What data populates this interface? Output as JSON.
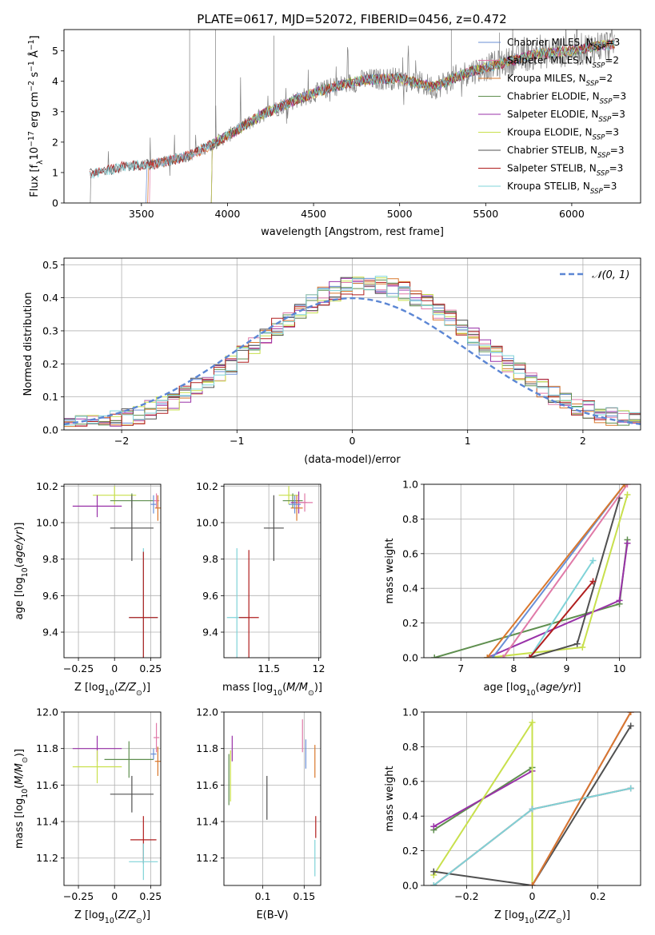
{
  "title": "PLATE=0617, MJD=52072, FIBERID=0456, z=0.472",
  "colors": {
    "Chabrier MILES": "#6a8fd6",
    "Salpeter MILES": "#e07aa8",
    "Kroupa MILES": "#d9782d",
    "Chabrier ELODIE": "#5f8f4f",
    "Salpeter ELODIE": "#9932a8",
    "Kroupa ELODIE": "#c8e04c",
    "Chabrier STELIB": "#505050",
    "Salpeter STELIB": "#b01e1e",
    "Kroupa STELIB": "#7fd3d8",
    "data": "#808080",
    "normal": "#5b86d4"
  },
  "chart_data": [
    {
      "id": "spectrum",
      "type": "line",
      "title": "PLATE=0617, MJD=52072, FIBERID=0456, z=0.472",
      "xlabel": "wavelength [Angstrom, rest frame]",
      "ylabel": "Flux [fλ10⁻¹⁷ erg cm⁻² s⁻¹ Å⁻¹]",
      "xlim": [
        3050,
        6400
      ],
      "ylim": [
        0,
        5.7
      ],
      "xticks": [
        3500,
        4000,
        4500,
        5000,
        5500,
        6000
      ],
      "yticks": [
        0,
        1,
        2,
        3,
        4,
        5
      ],
      "legend_position": "top-right",
      "legend": [
        {
          "name": "Chabrier MILES",
          "label": "Chabrier MILES, N",
          "sub": "SSP",
          "suffix": "=3"
        },
        {
          "name": "Salpeter MILES",
          "label": "Salpeter MILES, N",
          "sub": "SSP",
          "suffix": "=2"
        },
        {
          "name": "Kroupa MILES",
          "label": "Kroupa MILES, N",
          "sub": "SSP",
          "suffix": "=2"
        },
        {
          "name": "Chabrier ELODIE",
          "label": "Chabrier ELODIE, N",
          "sub": "SSP",
          "suffix": "=3"
        },
        {
          "name": "Salpeter ELODIE",
          "label": "Salpeter ELODIE, N",
          "sub": "SSP",
          "suffix": "=3"
        },
        {
          "name": "Kroupa ELODIE",
          "label": "Kroupa ELODIE, N",
          "sub": "SSP",
          "suffix": "=3"
        },
        {
          "name": "Chabrier STELIB",
          "label": "Chabrier STELIB, N",
          "sub": "SSP",
          "suffix": "=3"
        },
        {
          "name": "Salpeter STELIB",
          "label": "Salpeter STELIB, N",
          "sub": "SSP",
          "suffix": "=3"
        },
        {
          "name": "Kroupa STELIB",
          "label": "Kroupa STELIB, N",
          "sub": "SSP",
          "suffix": "=3"
        }
      ],
      "continuum_knots": [
        [
          3200,
          0.95
        ],
        [
          3400,
          1.2
        ],
        [
          3600,
          1.3
        ],
        [
          3800,
          1.6
        ],
        [
          4000,
          2.2
        ],
        [
          4200,
          2.9
        ],
        [
          4400,
          3.4
        ],
        [
          4600,
          3.8
        ],
        [
          4800,
          4.05
        ],
        [
          5000,
          4.1
        ],
        [
          5200,
          3.8
        ],
        [
          5400,
          4.3
        ],
        [
          5600,
          4.6
        ],
        [
          5800,
          4.9
        ],
        [
          6000,
          5.0
        ],
        [
          6200,
          5.2
        ],
        [
          6250,
          5.2
        ]
      ]
    },
    {
      "id": "residuals",
      "type": "histogram",
      "xlabel": "(data-model)/error",
      "ylabel": "Normed distribution",
      "xlim": [
        -2.5,
        2.5
      ],
      "ylim": [
        0,
        0.52
      ],
      "xticks": [
        -2,
        -1,
        0,
        1,
        2
      ],
      "yticks": [
        0.0,
        0.1,
        0.2,
        0.3,
        0.4,
        0.5
      ],
      "bin_edges_range": [
        -2.5,
        2.5
      ],
      "bins": 50,
      "reference_curve": {
        "name": "𝒩(0, 1)",
        "mean": 0,
        "sigma": 1
      },
      "legend_position": "top-right",
      "grid": true
    },
    {
      "id": "age-vs-Z",
      "type": "errorbar",
      "xlabel": "Z [log₁₀(Z/Z⊙)]",
      "ylabel": "age  [log₁₀(age/yr)]",
      "xlim": [
        -0.35,
        0.32
      ],
      "ylim": [
        9.26,
        10.21
      ],
      "xticks": [
        -0.25,
        0.0,
        0.25
      ],
      "yticks": [
        9.4,
        9.6,
        9.8,
        10.0,
        10.2
      ],
      "points": [
        {
          "series": "Kroupa ELODIE",
          "x": 0.0,
          "y": 10.15,
          "xerr": 0.15,
          "yerr": 0.05
        },
        {
          "series": "Chabrier ELODIE",
          "x": 0.12,
          "y": 10.12,
          "xerr": 0.15,
          "yerr": 0.04
        },
        {
          "series": "Salpeter ELODIE",
          "x": -0.12,
          "y": 10.09,
          "xerr": 0.17,
          "yerr": 0.06
        },
        {
          "series": "Chabrier STELIB",
          "x": 0.12,
          "y": 9.97,
          "xerr": 0.15,
          "yerr": 0.18
        },
        {
          "series": "Salpeter MILES",
          "x": 0.29,
          "y": 10.12,
          "xerr": 0.02,
          "yerr": 0.04
        },
        {
          "series": "Kroupa MILES",
          "x": 0.3,
          "y": 10.08,
          "xerr": 0.02,
          "yerr": 0.07
        },
        {
          "series": "Chabrier MILES",
          "x": 0.27,
          "y": 10.1,
          "xerr": 0.02,
          "yerr": 0.05
        },
        {
          "series": "Kroupa STELIB",
          "x": 0.2,
          "y": 9.48,
          "xerr": 0.1,
          "yerr": 0.38
        },
        {
          "series": "Salpeter STELIB",
          "x": 0.2,
          "y": 9.48,
          "xerr": 0.1,
          "yerr": 0.36
        }
      ]
    },
    {
      "id": "age-vs-mass",
      "type": "errorbar",
      "xlabel": "mass [log₁₀(M/M⊙)]",
      "ylabel": "",
      "xlim": [
        11.05,
        12.02
      ],
      "ylim": [
        9.26,
        10.21
      ],
      "xticks": [
        11.5,
        12.0
      ],
      "yticks": [
        9.4,
        9.6,
        9.8,
        10.0,
        10.2
      ],
      "points": [
        {
          "series": "Kroupa ELODIE",
          "x": 11.7,
          "y": 10.15,
          "xerr": 0.1,
          "yerr": 0.05
        },
        {
          "series": "Chabrier ELODIE",
          "x": 11.74,
          "y": 10.12,
          "xerr": 0.1,
          "yerr": 0.04
        },
        {
          "series": "Salpeter ELODIE",
          "x": 11.8,
          "y": 10.11,
          "xerr": 0.08,
          "yerr": 0.06
        },
        {
          "series": "Salpeter MILES",
          "x": 11.86,
          "y": 10.11,
          "xerr": 0.08,
          "yerr": 0.05
        },
        {
          "series": "Kroupa MILES",
          "x": 11.78,
          "y": 10.08,
          "xerr": 0.06,
          "yerr": 0.07
        },
        {
          "series": "Chabrier MILES",
          "x": 11.76,
          "y": 10.1,
          "xerr": 0.06,
          "yerr": 0.05
        },
        {
          "series": "Chabrier STELIB",
          "x": 11.55,
          "y": 9.97,
          "xerr": 0.1,
          "yerr": 0.18
        },
        {
          "series": "Kroupa STELIB",
          "x": 11.18,
          "y": 9.48,
          "xerr": 0.1,
          "yerr": 0.38
        },
        {
          "series": "Salpeter STELIB",
          "x": 11.3,
          "y": 9.48,
          "xerr": 0.1,
          "yerr": 0.37
        }
      ]
    },
    {
      "id": "weight-vs-age",
      "type": "line",
      "xlabel": "age  [log₁₀(age/yr)]",
      "ylabel": "mass weight",
      "xlim": [
        6.3,
        10.4
      ],
      "ylim": [
        0,
        1.0
      ],
      "xticks": [
        7,
        8,
        9,
        10
      ],
      "yticks": [
        0.0,
        0.2,
        0.4,
        0.6,
        0.8,
        1.0
      ],
      "grid": true,
      "series": [
        {
          "name": "Chabrier ELODIE",
          "points": [
            [
              6.5,
              0.0
            ],
            [
              10.0,
              0.31
            ],
            [
              10.15,
              0.68
            ]
          ]
        },
        {
          "name": "Salpeter ELODIE",
          "points": [
            [
              7.5,
              0.0
            ],
            [
              10.0,
              0.33
            ],
            [
              10.15,
              0.66
            ]
          ]
        },
        {
          "name": "Kroupa ELODIE",
          "points": [
            [
              7.5,
              0.0
            ],
            [
              9.3,
              0.06
            ],
            [
              10.15,
              0.94
            ]
          ]
        },
        {
          "name": "Chabrier STELIB",
          "points": [
            [
              8.3,
              0.0
            ],
            [
              9.2,
              0.08
            ],
            [
              10.0,
              0.92
            ]
          ]
        },
        {
          "name": "Kroupa STELIB",
          "points": [
            [
              8.3,
              0.0
            ],
            [
              9.5,
              0.56
            ]
          ]
        },
        {
          "name": "Salpeter STELIB",
          "points": [
            [
              8.3,
              0.0
            ],
            [
              9.5,
              0.44
            ]
          ]
        },
        {
          "name": "Chabrier MILES",
          "points": [
            [
              7.6,
              0.0
            ],
            [
              10.1,
              1.0
            ]
          ]
        },
        {
          "name": "Salpeter MILES",
          "points": [
            [
              7.8,
              0.0
            ],
            [
              10.15,
              1.0
            ]
          ]
        },
        {
          "name": "Kroupa MILES",
          "points": [
            [
              7.5,
              0.0
            ],
            [
              10.1,
              1.0
            ]
          ]
        }
      ]
    },
    {
      "id": "mass-vs-Z",
      "type": "errorbar",
      "xlabel": "Z [log₁₀(Z/Z⊙)]",
      "ylabel": "mass [log₁₀(M/M⊙)]",
      "xlim": [
        -0.35,
        0.32
      ],
      "ylim": [
        11.05,
        12.0
      ],
      "xticks": [
        -0.25,
        0.0,
        0.25
      ],
      "yticks": [
        11.2,
        11.4,
        11.6,
        11.8,
        12.0
      ],
      "points": [
        {
          "series": "Salpeter ELODIE",
          "x": -0.12,
          "y": 11.8,
          "xerr": 0.17,
          "yerr": 0.07
        },
        {
          "series": "Kroupa ELODIE",
          "x": -0.12,
          "y": 11.7,
          "xerr": 0.17,
          "yerr": 0.09
        },
        {
          "series": "Chabrier ELODIE",
          "x": 0.1,
          "y": 11.74,
          "xerr": 0.17,
          "yerr": 0.1
        },
        {
          "series": "Chabrier STELIB",
          "x": 0.12,
          "y": 11.55,
          "xerr": 0.15,
          "yerr": 0.1
        },
        {
          "series": "Salpeter MILES",
          "x": 0.29,
          "y": 11.86,
          "xerr": 0.02,
          "yerr": 0.08
        },
        {
          "series": "Chabrier MILES",
          "x": 0.27,
          "y": 11.77,
          "xerr": 0.02,
          "yerr": 0.03
        },
        {
          "series": "Kroupa MILES",
          "x": 0.3,
          "y": 11.73,
          "xerr": 0.02,
          "yerr": 0.08
        },
        {
          "series": "Salpeter STELIB",
          "x": 0.2,
          "y": 11.3,
          "xerr": 0.09,
          "yerr": 0.13
        },
        {
          "series": "Kroupa STELIB",
          "x": 0.2,
          "y": 11.18,
          "xerr": 0.1,
          "yerr": 0.1
        }
      ]
    },
    {
      "id": "mass-vs-ebv",
      "type": "errorbar",
      "xlabel": "E(B-V)",
      "ylabel": "",
      "xlim": [
        0.053,
        0.17
      ],
      "ylim": [
        11.05,
        12.0
      ],
      "xticks": [
        0.1,
        0.15
      ],
      "yticks": [
        11.2,
        11.4,
        11.6,
        11.8,
        12.0
      ],
      "points": [
        {
          "series": "Salpeter ELODIE",
          "x": 0.063,
          "y": 11.8,
          "xerr": 0.0,
          "yerr": 0.07
        },
        {
          "series": "Kroupa ELODIE",
          "x": 0.061,
          "y": 11.65,
          "xerr": 0.0,
          "yerr": 0.14
        },
        {
          "series": "Chabrier ELODIE",
          "x": 0.059,
          "y": 11.63,
          "xerr": 0.0,
          "yerr": 0.14
        },
        {
          "series": "Chabrier STELIB",
          "x": 0.105,
          "y": 11.53,
          "xerr": 0.0,
          "yerr": 0.12
        },
        {
          "series": "Salpeter MILES",
          "x": 0.148,
          "y": 11.87,
          "xerr": 0.0,
          "yerr": 0.09
        },
        {
          "series": "Chabrier MILES",
          "x": 0.152,
          "y": 11.77,
          "xerr": 0.0,
          "yerr": 0.08
        },
        {
          "series": "Kroupa MILES",
          "x": 0.163,
          "y": 11.73,
          "xerr": 0.0,
          "yerr": 0.09
        },
        {
          "series": "Salpeter STELIB",
          "x": 0.164,
          "y": 11.37,
          "xerr": 0.0,
          "yerr": 0.06
        },
        {
          "series": "Kroupa STELIB",
          "x": 0.163,
          "y": 11.2,
          "xerr": 0.0,
          "yerr": 0.1
        }
      ]
    },
    {
      "id": "weight-vs-Z",
      "type": "line",
      "xlabel": "Z [log₁₀(Z/Z⊙)]",
      "ylabel": "mass weight",
      "xlim": [
        -0.33,
        0.33
      ],
      "ylim": [
        0,
        1.0
      ],
      "xticks": [
        -0.2,
        0.0,
        0.2
      ],
      "yticks": [
        0.0,
        0.2,
        0.4,
        0.6,
        0.8,
        1.0
      ],
      "grid": true,
      "series": [
        {
          "name": "Chabrier ELODIE",
          "points": [
            [
              -0.3,
              0.32
            ],
            [
              0.0,
              0.68
            ],
            [
              0.0,
              0.0
            ]
          ]
        },
        {
          "name": "Salpeter ELODIE",
          "points": [
            [
              -0.3,
              0.34
            ],
            [
              0.0,
              0.66
            ],
            [
              0.0,
              0.0
            ]
          ]
        },
        {
          "name": "Kroupa ELODIE",
          "points": [
            [
              -0.3,
              0.06
            ],
            [
              0.0,
              0.94
            ],
            [
              0.0,
              0.0
            ]
          ]
        },
        {
          "name": "Chabrier STELIB",
          "points": [
            [
              -0.3,
              0.08
            ],
            [
              0.0,
              0.0
            ],
            [
              0.3,
              0.92
            ]
          ]
        },
        {
          "name": "Salpeter STELIB",
          "points": [
            [
              -0.3,
              0.0
            ],
            [
              0.0,
              0.44
            ],
            [
              0.3,
              0.56
            ]
          ]
        },
        {
          "name": "Kroupa STELIB",
          "points": [
            [
              -0.3,
              0.0
            ],
            [
              0.0,
              0.44
            ],
            [
              0.3,
              0.56
            ]
          ]
        },
        {
          "name": "Chabrier MILES",
          "points": [
            [
              0.0,
              0.0
            ],
            [
              0.3,
              1.0
            ]
          ]
        },
        {
          "name": "Salpeter MILES",
          "points": [
            [
              0.0,
              0.0
            ],
            [
              0.3,
              1.0
            ]
          ]
        },
        {
          "name": "Kroupa MILES",
          "points": [
            [
              0.0,
              0.0
            ],
            [
              0.3,
              1.0
            ]
          ]
        }
      ]
    }
  ]
}
